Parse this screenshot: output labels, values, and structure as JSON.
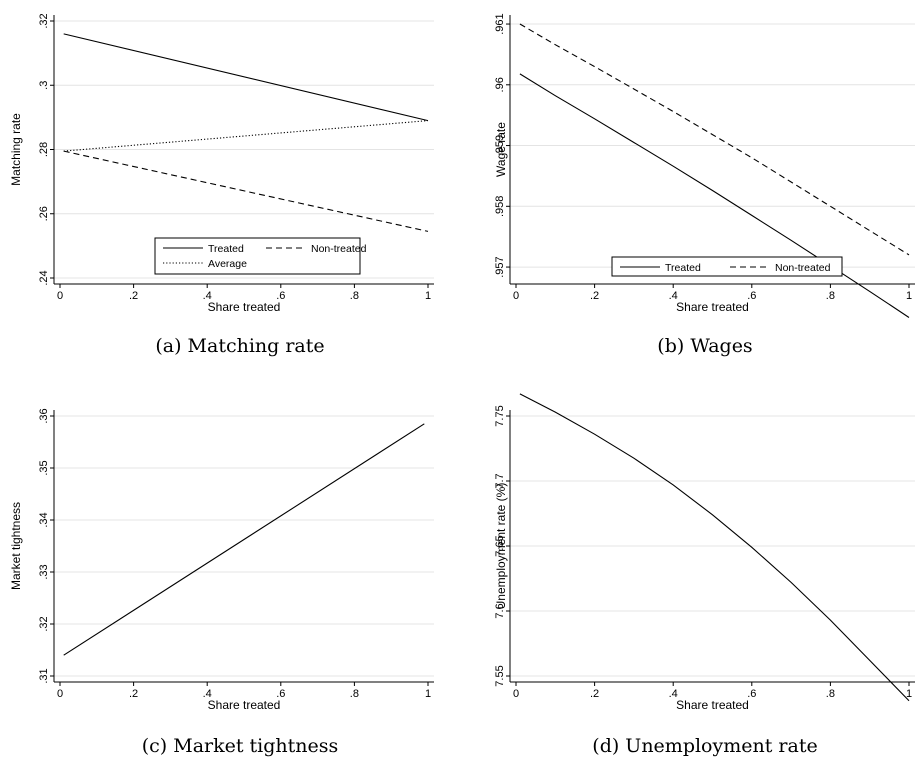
{
  "chart_data": [
    {
      "type": "line",
      "caption": "(a) Matching rate",
      "xlabel": "Share treated",
      "ylabel": "Matching rate",
      "xlim": [
        0,
        1
      ],
      "ylim": [
        0.24,
        0.32
      ],
      "xticks": [
        0,
        0.2,
        0.4,
        0.6,
        0.8,
        1
      ],
      "xtick_labels": [
        "0",
        ".2",
        ".4",
        ".6",
        ".8",
        "1"
      ],
      "yticks": [
        0.24,
        0.26,
        0.28,
        0.3,
        0.32
      ],
      "ytick_labels": [
        ".24",
        ".26",
        ".28",
        ".3",
        ".32"
      ],
      "grid": true,
      "legend": "bottom-center",
      "series": [
        {
          "name": "Treated",
          "style": "solid",
          "x": [
            0.01,
            1
          ],
          "y": [
            0.316,
            0.289
          ]
        },
        {
          "name": "Non-treated",
          "style": "dashed",
          "x": [
            0.01,
            1
          ],
          "y": [
            0.2795,
            0.2545
          ]
        },
        {
          "name": "Average",
          "style": "dotted",
          "x": [
            0.01,
            1
          ],
          "y": [
            0.2795,
            0.289
          ]
        }
      ]
    },
    {
      "type": "line",
      "caption": "(b) Wages",
      "xlabel": "Share treated",
      "ylabel": "Wage rate",
      "xlim": [
        0,
        1
      ],
      "ylim": [
        0.95682,
        0.96105
      ],
      "xticks": [
        0,
        0.2,
        0.4,
        0.6,
        0.8,
        1
      ],
      "xtick_labels": [
        "0",
        ".2",
        ".4",
        ".6",
        ".8",
        "1"
      ],
      "yticks": [
        0.957,
        0.958,
        0.959,
        0.96,
        0.961
      ],
      "ytick_labels": [
        ".957",
        ".958",
        ".959",
        ".96",
        ".961"
      ],
      "grid": true,
      "legend": "bottom-center",
      "series": [
        {
          "name": "Treated",
          "style": "solid",
          "x": [
            0.01,
            0.1,
            0.2,
            0.3,
            0.4,
            0.5,
            0.6,
            0.7,
            0.8,
            0.9,
            1
          ],
          "y": [
            0.96018,
            0.95982,
            0.95944,
            0.95905,
            0.95866,
            0.95826,
            0.95785,
            0.95744,
            0.95702,
            0.9566,
            0.95617
          ]
        },
        {
          "name": "Non-treated",
          "style": "dashed",
          "x": [
            0.01,
            0.1,
            0.2,
            0.3,
            0.4,
            0.5,
            0.6,
            0.7,
            0.8,
            0.9,
            1
          ],
          "y": [
            0.961,
            0.96066,
            0.9603,
            0.95993,
            0.95956,
            0.95918,
            0.9588,
            0.9584,
            0.958,
            0.9576,
            0.9572
          ]
        }
      ]
    },
    {
      "type": "line",
      "caption": "(c) Market tightness",
      "xlabel": "Share treated",
      "ylabel": "Market tightness",
      "xlim": [
        0,
        1
      ],
      "ylim": [
        0.31,
        0.36
      ],
      "xticks": [
        0,
        0.2,
        0.4,
        0.6,
        0.8,
        1
      ],
      "xtick_labels": [
        "0",
        ".2",
        ".4",
        ".6",
        ".8",
        "1"
      ],
      "yticks": [
        0.31,
        0.32,
        0.33,
        0.34,
        0.35,
        0.36
      ],
      "ytick_labels": [
        ".31",
        ".32",
        ".33",
        ".34",
        ".35",
        ".36"
      ],
      "grid": true,
      "legend": "none",
      "series": [
        {
          "style": "solid",
          "x": [
            0.01,
            0.99
          ],
          "y": [
            0.314,
            0.3585
          ]
        }
      ]
    },
    {
      "type": "line",
      "caption": "(d) Unemployment rate",
      "xlabel": "Share treated",
      "ylabel": "Unemployment rate (%)",
      "xlim": [
        0,
        1
      ],
      "ylim": [
        7.55,
        7.75
      ],
      "xticks": [
        0,
        0.2,
        0.4,
        0.6,
        0.8,
        1
      ],
      "xtick_labels": [
        "0",
        ".2",
        ".4",
        ".6",
        ".8",
        "1"
      ],
      "yticks": [
        7.55,
        7.6,
        7.65,
        7.7,
        7.75
      ],
      "ytick_labels": [
        "7.55",
        "7.6",
        "7.65",
        "7.7",
        "7.75"
      ],
      "grid": true,
      "legend": "none",
      "series": [
        {
          "style": "solid",
          "x": [
            0.01,
            0.1,
            0.2,
            0.3,
            0.4,
            0.5,
            0.6,
            0.7,
            0.8,
            0.9,
            1
          ],
          "y": [
            7.767,
            7.753,
            7.736,
            7.7175,
            7.697,
            7.674,
            7.649,
            7.622,
            7.593,
            7.562,
            7.531
          ]
        }
      ]
    }
  ]
}
